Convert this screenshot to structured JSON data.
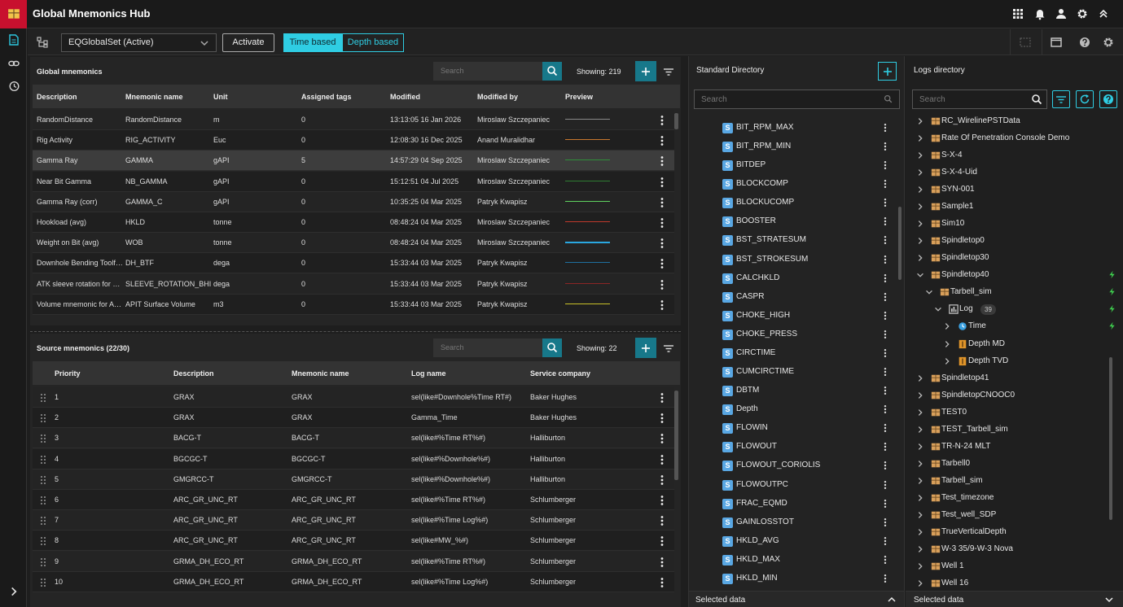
{
  "header": {
    "title": "Global Mnemonics Hub"
  },
  "toolbar": {
    "dataset": "EQGlobalSet (Active)",
    "activate": "Activate",
    "modes": [
      "Time based",
      "Depth based"
    ]
  },
  "global": {
    "title": "Global mnemonics",
    "search": "Search",
    "showing": "Showing: 219",
    "columns": [
      "Description",
      "Mnemonic name",
      "Unit",
      "Assigned tags",
      "Modified",
      "Modified by",
      "Preview"
    ],
    "rows": [
      [
        "RandomDistance",
        "RandomDistance",
        "m",
        0,
        "13:13:05 16 Jan 2026",
        "Miroslaw Szczepaniec"
      ],
      [
        "Rig Activity",
        "RIG_ACTIVITY",
        "Euc",
        0,
        "12:08:30 16 Dec 2025",
        "Anand Muralidhar"
      ],
      [
        "Gamma Ray",
        "GAMMA",
        "gAPI",
        5,
        "14:57:29 04 Sep 2025",
        "Miroslaw Szczepaniec"
      ],
      [
        "Near Bit Gamma",
        "NB_GAMMA",
        "gAPI",
        0,
        "15:12:51 04 Jul 2025",
        "Miroslaw Szczepaniec"
      ],
      [
        "Gamma Ray (corr)",
        "GAMMA_C",
        "gAPI",
        0,
        "10:35:25 04 Mar 2025",
        "Patryk Kwapisz"
      ],
      [
        "Hookload (avg)",
        "HKLD",
        "tonne",
        0,
        "08:48:24 04 Mar 2025",
        "Miroslaw Szczepaniec"
      ],
      [
        "Weight on Bit (avg)",
        "WOB",
        "tonne",
        0,
        "08:48:24 04 Mar 2025",
        "Miroslaw Szczepaniec"
      ],
      [
        "Downhole Bending Toolf…",
        "DH_BTF",
        "dega",
        0,
        "15:33:44 03 Mar 2025",
        "Patryk Kwapisz"
      ],
      [
        "ATK sleeve rotation for …",
        "SLEEVE_ROTATION_BHI",
        "dega",
        0,
        "15:33:44 03 Mar 2025",
        "Patryk Kwapisz"
      ],
      [
        "Volume mnemonic for A…",
        "APIT Surface Volume",
        "m3",
        0,
        "15:33:44 03 Mar 2025",
        "Patryk Kwapisz"
      ]
    ],
    "preview_colors": [
      "#8a8a8a",
      "#c8782e",
      "#2f8f3a",
      "#2e7d32",
      "#5fd35f",
      "#c0392b",
      "#2aa7e0",
      "#1f6f9f",
      "#8b2525",
      "#c8c028"
    ],
    "selected_row": 2
  },
  "source": {
    "title": "Source mnemonics (22/30)",
    "search": "Search",
    "showing": "Showing: 22",
    "columns": [
      "Priority",
      "Description",
      "Mnemonic name",
      "Log name",
      "Service company"
    ],
    "rows": [
      [
        1,
        "GRAX",
        "GRAX",
        "sel(like#Downhole%Time RT#)",
        "Baker Hughes"
      ],
      [
        2,
        "GRAX",
        "GRAX",
        "Gamma_Time",
        "Baker Hughes"
      ],
      [
        3,
        "BACG-T",
        "BACG-T",
        "sel(like#%Time RT%#)",
        "Halliburton"
      ],
      [
        4,
        "BGCGC-T",
        "BGCGC-T",
        "sel(like#%Downhole%#)",
        "Halliburton"
      ],
      [
        5,
        "GMGRCC-T",
        "GMGRCC-T",
        "sel(like#%Downhole%#)",
        "Halliburton"
      ],
      [
        6,
        "ARC_GR_UNC_RT",
        "ARC_GR_UNC_RT",
        "sel(like#%Time RT%#)",
        "Schlumberger"
      ],
      [
        7,
        "ARC_GR_UNC_RT",
        "ARC_GR_UNC_RT",
        "sel(like#%Time Log%#)",
        "Schlumberger"
      ],
      [
        8,
        "ARC_GR_UNC_RT",
        "ARC_GR_UNC_RT",
        "sel(like#MW_%#)",
        "Schlumberger"
      ],
      [
        9,
        "GRMA_DH_ECO_RT",
        "GRMA_DH_ECO_RT",
        "sel(like#%Time RT%#)",
        "Schlumberger"
      ],
      [
        10,
        "GRMA_DH_ECO_RT",
        "GRMA_DH_ECO_RT",
        "sel(like#%Time Log%#)",
        "Schlumberger"
      ]
    ]
  },
  "standard": {
    "title": "Standard Directory",
    "search": "Search",
    "icon_letter": "S",
    "footer": "Selected data",
    "items": [
      "BIT_RPM_MAX",
      "BIT_RPM_MIN",
      "BITDEP",
      "BLOCKCOMP",
      "BLOCKUCOMP",
      "BOOSTER",
      "BST_STRATESUM",
      "BST_STROKESUM",
      "CALCHKLD",
      "CASPR",
      "CHOKE_HIGH",
      "CHOKE_PRESS",
      "CIRCTIME",
      "CUMCIRCTIME",
      "DBTM",
      "Depth",
      "FLOWIN",
      "FLOWOUT",
      "FLOWOUT_CORIOLIS",
      "FLOWOUTPC",
      "FRAC_EQMD",
      "GAINLOSSTOT",
      "HKLD_AVG",
      "HKLD_MAX",
      "HKLD_MIN"
    ]
  },
  "logs": {
    "title": "Logs directory",
    "search": "Search",
    "footer": "Selected data",
    "items": [
      {
        "label": "RC_WirelinePSTData",
        "level": 0,
        "open": false,
        "icon": "well",
        "live": false
      },
      {
        "label": "Rate Of Penetration Console Demo",
        "level": 0,
        "open": false,
        "icon": "well",
        "live": false
      },
      {
        "label": "S-X-4",
        "level": 0,
        "open": false,
        "icon": "well",
        "live": false
      },
      {
        "label": "S-X-4-Uid",
        "level": 0,
        "open": false,
        "icon": "well",
        "live": false
      },
      {
        "label": "SYN-001",
        "level": 0,
        "open": false,
        "icon": "well",
        "live": false
      },
      {
        "label": "Sample1",
        "level": 0,
        "open": false,
        "icon": "well",
        "live": false
      },
      {
        "label": "Sim10",
        "level": 0,
        "open": false,
        "icon": "well",
        "live": false
      },
      {
        "label": "Spindletop0",
        "level": 0,
        "open": false,
        "icon": "well",
        "live": false
      },
      {
        "label": "Spindletop30",
        "level": 0,
        "open": false,
        "icon": "well",
        "live": false
      },
      {
        "label": "Spindletop40",
        "level": 0,
        "open": true,
        "icon": "well",
        "live": true
      },
      {
        "label": "Tarbell_sim",
        "level": 1,
        "open": true,
        "icon": "well",
        "live": true
      },
      {
        "label": "Log",
        "level": 2,
        "open": true,
        "icon": "log",
        "live": true,
        "badge": 39
      },
      {
        "label": "Time",
        "level": 3,
        "open": false,
        "icon": "time",
        "live": true
      },
      {
        "label": "Depth MD",
        "level": 3,
        "open": false,
        "icon": "depth",
        "live": false
      },
      {
        "label": "Depth TVD",
        "level": 3,
        "open": false,
        "icon": "depth",
        "live": false
      },
      {
        "label": "Spindletop41",
        "level": 0,
        "open": false,
        "icon": "well",
        "live": false
      },
      {
        "label": "SpindletopCNOOC0",
        "level": 0,
        "open": false,
        "icon": "well",
        "live": false
      },
      {
        "label": "TEST0",
        "level": 0,
        "open": false,
        "icon": "well",
        "live": false
      },
      {
        "label": "TEST_Tarbell_sim",
        "level": 0,
        "open": false,
        "icon": "well",
        "live": false
      },
      {
        "label": "TR-N-24 MLT",
        "level": 0,
        "open": false,
        "icon": "well",
        "live": false
      },
      {
        "label": "Tarbell0",
        "level": 0,
        "open": false,
        "icon": "well",
        "live": false
      },
      {
        "label": "Tarbell_sim",
        "level": 0,
        "open": false,
        "icon": "well",
        "live": false
      },
      {
        "label": "Test_timezone",
        "level": 0,
        "open": false,
        "icon": "well",
        "live": false
      },
      {
        "label": "Test_well_SDP",
        "level": 0,
        "open": false,
        "icon": "well",
        "live": false
      },
      {
        "label": "TrueVerticalDepth",
        "level": 0,
        "open": false,
        "icon": "well",
        "live": false
      },
      {
        "label": "W-3 35/9-W-3 Nova",
        "level": 0,
        "open": false,
        "icon": "well",
        "live": false
      },
      {
        "label": "Well 1",
        "level": 0,
        "open": false,
        "icon": "well",
        "live": false
      },
      {
        "label": "Well 16",
        "level": 0,
        "open": false,
        "icon": "well",
        "live": false
      }
    ]
  }
}
